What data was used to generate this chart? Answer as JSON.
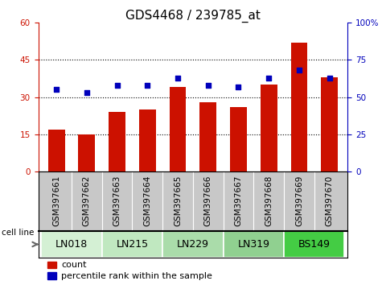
{
  "title": "GDS4468 / 239785_at",
  "samples": [
    "GSM397661",
    "GSM397662",
    "GSM397663",
    "GSM397664",
    "GSM397665",
    "GSM397666",
    "GSM397667",
    "GSM397668",
    "GSM397669",
    "GSM397670"
  ],
  "counts": [
    17,
    15,
    24,
    25,
    34,
    28,
    26,
    35,
    52,
    38
  ],
  "percentile_ranks": [
    55,
    53,
    58,
    58,
    63,
    58,
    57,
    63,
    68,
    63
  ],
  "cell_lines": [
    {
      "name": "LN018",
      "samples": [
        0,
        1
      ],
      "color": "#d4f0d4"
    },
    {
      "name": "LN215",
      "samples": [
        2,
        3
      ],
      "color": "#c0e8c0"
    },
    {
      "name": "LN229",
      "samples": [
        4,
        5
      ],
      "color": "#aadcaa"
    },
    {
      "name": "LN319",
      "samples": [
        6,
        7
      ],
      "color": "#90d090"
    },
    {
      "name": "BS149",
      "samples": [
        8,
        9
      ],
      "color": "#44cc44"
    }
  ],
  "ylim_left": [
    0,
    60
  ],
  "ylim_right": [
    0,
    100
  ],
  "yticks_left": [
    0,
    15,
    30,
    45,
    60
  ],
  "yticks_right": [
    0,
    25,
    50,
    75,
    100
  ],
  "bar_color": "#cc1100",
  "dot_color": "#0000bb",
  "grid_yticks": [
    15,
    30,
    45
  ],
  "bar_width": 0.55,
  "title_fontsize": 11,
  "tick_fontsize": 7.5,
  "label_fontsize": 9,
  "sample_bg_color": "#c8c8c8",
  "cell_line_border_color": "#000000"
}
